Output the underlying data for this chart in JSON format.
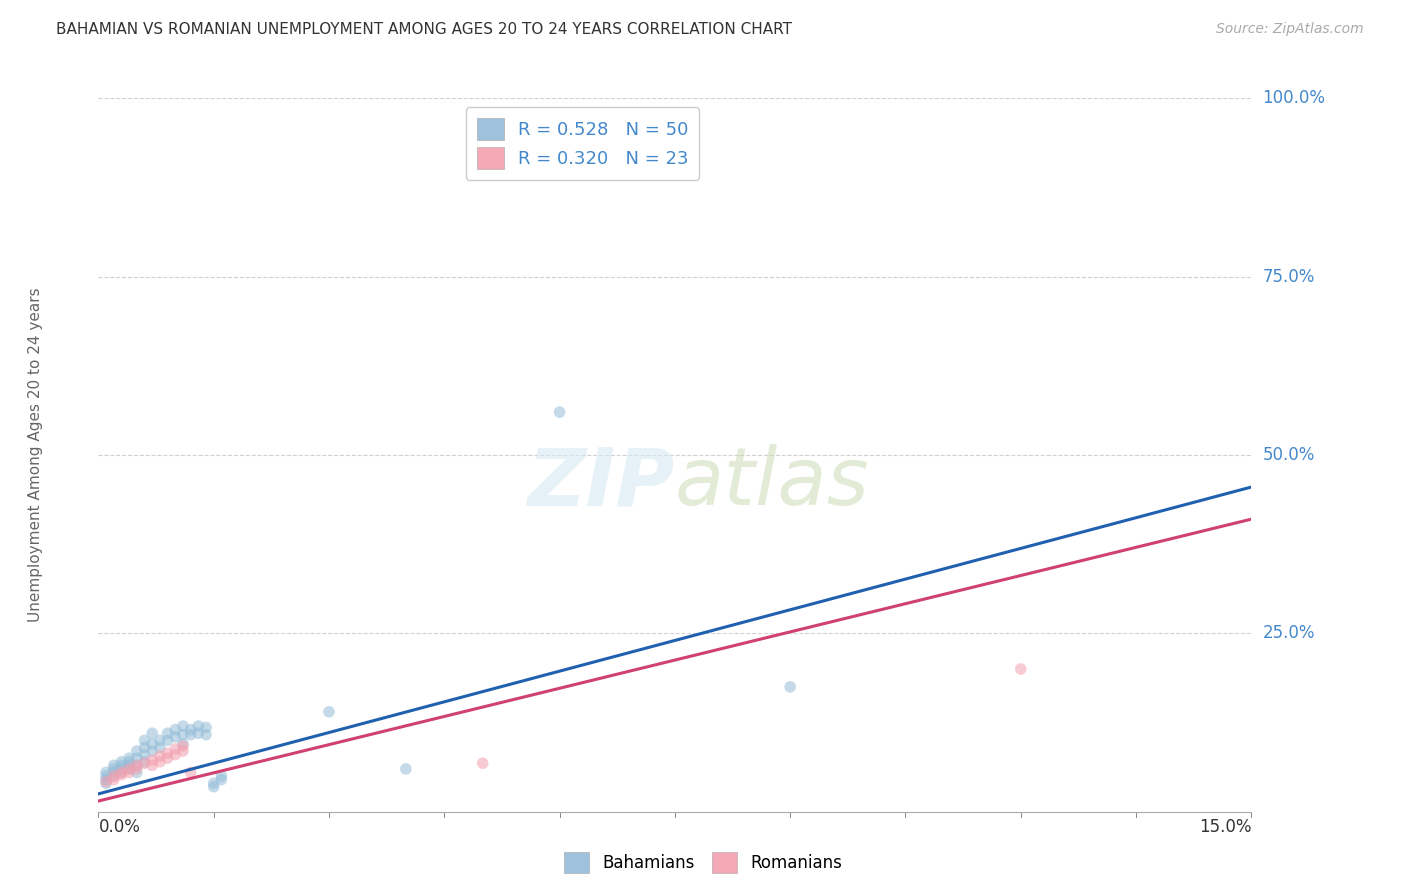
{
  "title": "BAHAMIAN VS ROMANIAN UNEMPLOYMENT AMONG AGES 20 TO 24 YEARS CORRELATION CHART",
  "source": "Source: ZipAtlas.com",
  "ylabel": "Unemployment Among Ages 20 to 24 years",
  "xlim": [
    0.0,
    0.15
  ],
  "ylim": [
    0.0,
    1.0
  ],
  "yticks": [
    0.0,
    0.25,
    0.5,
    0.75,
    1.0
  ],
  "ytick_labels": [
    "",
    "25.0%",
    "50.0%",
    "75.0%",
    "100.0%"
  ],
  "background_color": "#ffffff",
  "legend_r_entries": [
    {
      "label": "R = 0.528   N = 50",
      "color": "#a8c8e8"
    },
    {
      "label": "R = 0.320   N = 23",
      "color": "#f4a0b0"
    }
  ],
  "bahamian_points": [
    [
      0.001,
      0.05
    ],
    [
      0.001,
      0.045
    ],
    [
      0.001,
      0.055
    ],
    [
      0.001,
      0.04
    ],
    [
      0.002,
      0.06
    ],
    [
      0.002,
      0.055
    ],
    [
      0.002,
      0.05
    ],
    [
      0.002,
      0.065
    ],
    [
      0.003,
      0.065
    ],
    [
      0.003,
      0.06
    ],
    [
      0.003,
      0.055
    ],
    [
      0.003,
      0.07
    ],
    [
      0.004,
      0.07
    ],
    [
      0.004,
      0.065
    ],
    [
      0.004,
      0.06
    ],
    [
      0.004,
      0.075
    ],
    [
      0.005,
      0.075
    ],
    [
      0.005,
      0.065
    ],
    [
      0.005,
      0.085
    ],
    [
      0.005,
      0.055
    ],
    [
      0.006,
      0.08
    ],
    [
      0.006,
      0.09
    ],
    [
      0.006,
      0.07
    ],
    [
      0.006,
      0.1
    ],
    [
      0.007,
      0.095
    ],
    [
      0.007,
      0.085
    ],
    [
      0.007,
      0.11
    ],
    [
      0.008,
      0.1
    ],
    [
      0.008,
      0.09
    ],
    [
      0.009,
      0.11
    ],
    [
      0.009,
      0.1
    ],
    [
      0.01,
      0.115
    ],
    [
      0.01,
      0.105
    ],
    [
      0.011,
      0.12
    ],
    [
      0.011,
      0.108
    ],
    [
      0.011,
      0.095
    ],
    [
      0.012,
      0.115
    ],
    [
      0.012,
      0.108
    ],
    [
      0.013,
      0.12
    ],
    [
      0.013,
      0.11
    ],
    [
      0.014,
      0.118
    ],
    [
      0.014,
      0.108
    ],
    [
      0.015,
      0.04
    ],
    [
      0.015,
      0.035
    ],
    [
      0.016,
      0.05
    ],
    [
      0.016,
      0.045
    ],
    [
      0.03,
      0.14
    ],
    [
      0.04,
      0.06
    ],
    [
      0.06,
      0.56
    ],
    [
      0.09,
      0.175
    ]
  ],
  "romanian_points": [
    [
      0.001,
      0.042
    ],
    [
      0.002,
      0.05
    ],
    [
      0.002,
      0.045
    ],
    [
      0.003,
      0.055
    ],
    [
      0.003,
      0.052
    ],
    [
      0.004,
      0.06
    ],
    [
      0.004,
      0.055
    ],
    [
      0.005,
      0.065
    ],
    [
      0.005,
      0.06
    ],
    [
      0.006,
      0.068
    ],
    [
      0.007,
      0.072
    ],
    [
      0.007,
      0.065
    ],
    [
      0.008,
      0.078
    ],
    [
      0.008,
      0.07
    ],
    [
      0.009,
      0.082
    ],
    [
      0.009,
      0.075
    ],
    [
      0.01,
      0.088
    ],
    [
      0.01,
      0.08
    ],
    [
      0.011,
      0.092
    ],
    [
      0.011,
      0.085
    ],
    [
      0.012,
      0.055
    ],
    [
      0.05,
      0.068
    ],
    [
      0.12,
      0.2
    ]
  ],
  "bah_line": [
    0.0,
    0.15,
    0.025,
    0.455
  ],
  "rom_line": [
    0.0,
    0.15,
    0.015,
    0.41
  ],
  "bahamian_color": "#94bcd8",
  "romanian_color": "#f4a0b0",
  "bahamian_line_color": "#2060b0",
  "romanian_line_color": "#d04070",
  "title_color": "#333333",
  "axis_label_color": "#4488cc",
  "grid_color": "#cccccc",
  "marker_size": 70,
  "marker_alpha": 0.55,
  "line_width": 2.2
}
